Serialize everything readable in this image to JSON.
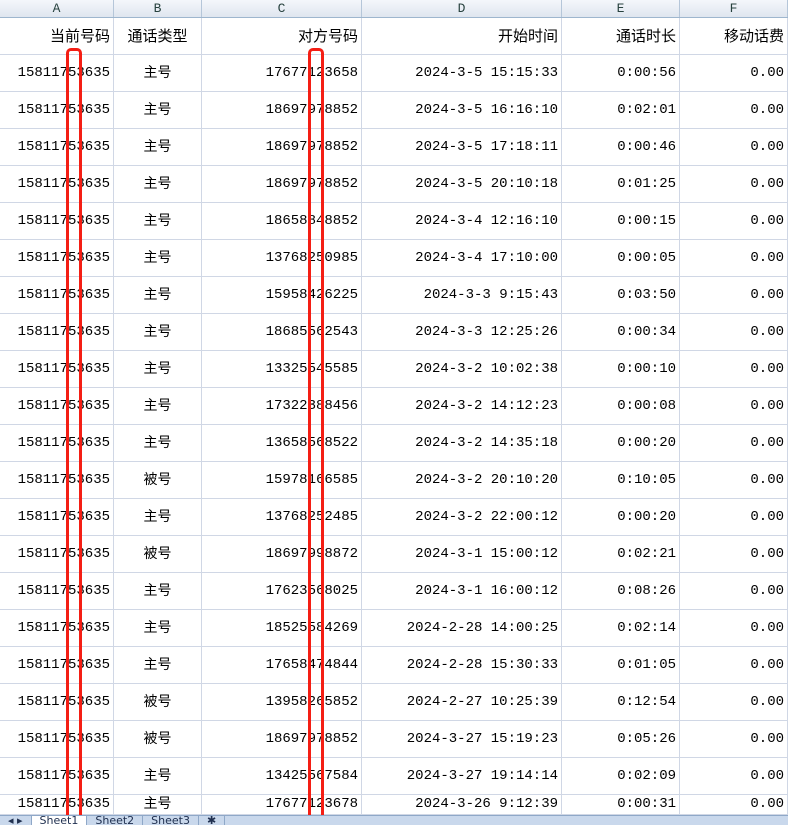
{
  "columns": [
    "A",
    "B",
    "C",
    "D",
    "E",
    "F"
  ],
  "headers": [
    "当前号码",
    "通话类型",
    "对方号码",
    "开始时间",
    "通话时长",
    "移动话费"
  ],
  "rows": [
    [
      "15811753635",
      "主号",
      "17677123658",
      "2024-3-5 15:15:33",
      "0:00:56",
      "0.00"
    ],
    [
      "15811753635",
      "主号",
      "18697978852",
      "2024-3-5 16:16:10",
      "0:02:01",
      "0.00"
    ],
    [
      "15811753635",
      "主号",
      "18697978852",
      "2024-3-5 17:18:11",
      "0:00:46",
      "0.00"
    ],
    [
      "15811753635",
      "主号",
      "18697978852",
      "2024-3-5 20:10:18",
      "0:01:25",
      "0.00"
    ],
    [
      "15811753635",
      "主号",
      "18658848852",
      "2024-3-4 12:16:10",
      "0:00:15",
      "0.00"
    ],
    [
      "15811753635",
      "主号",
      "13768250985",
      "2024-3-4 17:10:00",
      "0:00:05",
      "0.00"
    ],
    [
      "15811753635",
      "主号",
      "15958426225",
      "2024-3-3 9:15:43",
      "0:03:50",
      "0.00"
    ],
    [
      "15811753635",
      "主号",
      "18685562543",
      "2024-3-3 12:25:26",
      "0:00:34",
      "0.00"
    ],
    [
      "15811753635",
      "主号",
      "13325545585",
      "2024-3-2 10:02:38",
      "0:00:10",
      "0.00"
    ],
    [
      "15811753635",
      "主号",
      "17322388456",
      "2024-3-2 14:12:23",
      "0:00:08",
      "0.00"
    ],
    [
      "15811753635",
      "主号",
      "13658568522",
      "2024-3-2 14:35:18",
      "0:00:20",
      "0.00"
    ],
    [
      "15811753635",
      "被号",
      "15978166585",
      "2024-3-2 20:10:20",
      "0:10:05",
      "0.00"
    ],
    [
      "15811753635",
      "主号",
      "13768252485",
      "2024-3-2 22:00:12",
      "0:00:20",
      "0.00"
    ],
    [
      "15811753635",
      "被号",
      "18697998872",
      "2024-3-1 15:00:12",
      "0:02:21",
      "0.00"
    ],
    [
      "15811753635",
      "主号",
      "17623568025",
      "2024-3-1 16:00:12",
      "0:08:26",
      "0.00"
    ],
    [
      "15811753635",
      "主号",
      "18525584269",
      "2024-2-28 14:00:25",
      "0:02:14",
      "0.00"
    ],
    [
      "15811753635",
      "主号",
      "17658474844",
      "2024-2-28 15:30:33",
      "0:01:05",
      "0.00"
    ],
    [
      "15811753635",
      "被号",
      "13958265852",
      "2024-2-27 10:25:39",
      "0:12:54",
      "0.00"
    ],
    [
      "15811753635",
      "被号",
      "18697978852",
      "2024-3-27 15:19:23",
      "0:05:26",
      "0.00"
    ],
    [
      "15811753635",
      "主号",
      "13425567584",
      "2024-3-27 19:14:14",
      "0:02:09",
      "0.00"
    ],
    [
      "15811753635",
      "主号",
      "17677123678",
      "2024-3-26 9:12:39",
      "0:00:31",
      "0.00"
    ]
  ],
  "sheet_tabs": [
    "Sheet1",
    "Sheet2",
    "Sheet3"
  ],
  "redaction_color": "#f41e14"
}
